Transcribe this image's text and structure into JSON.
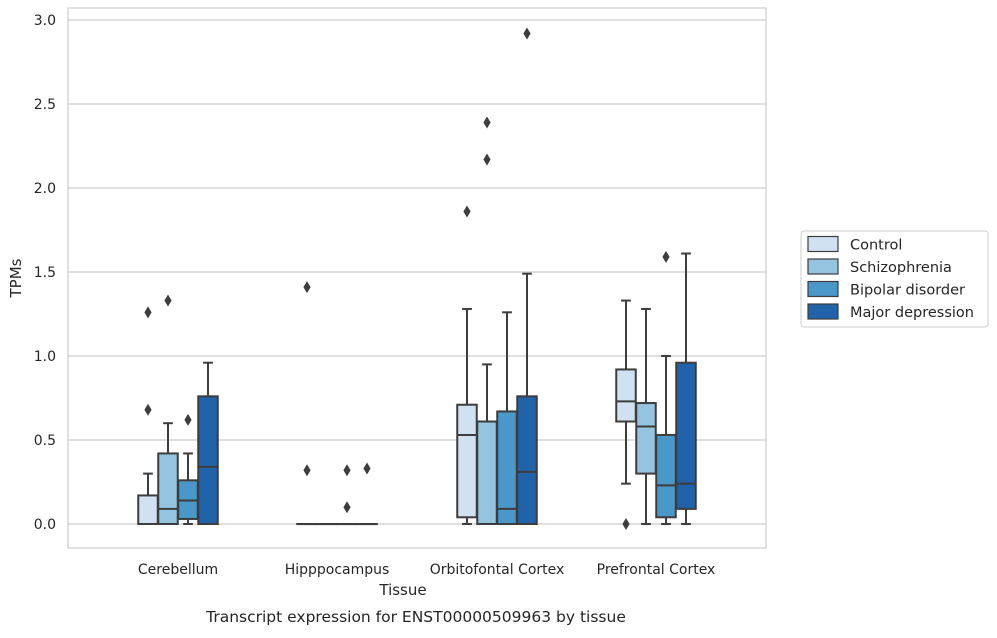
{
  "chart_data": {
    "type": "box",
    "xlabel": "Tissue",
    "ylabel": "TPMs",
    "caption": "Transcript expression for ENST00000509963 by tissue",
    "ylim": [
      -0.14,
      3.06
    ],
    "yticks": [
      "0.0",
      "0.5",
      "1.0",
      "1.5",
      "2.0",
      "2.5",
      "3.0"
    ],
    "grid": true,
    "legend_position": "right",
    "categories": [
      "Cerebellum",
      "Hipppocampus",
      "Orbitofontal Cortex",
      "Prefrontal Cortex"
    ],
    "colors": [
      "#d0e1f2",
      "#94c4df",
      "#4a98c9",
      "#2163aa"
    ],
    "series": [
      {
        "name": "Control",
        "boxes": [
          {
            "q1": 0.0,
            "median": 0.0,
            "q3": 0.17,
            "whislo": 0.0,
            "whishi": 0.3,
            "fliers": [
              0.68,
              1.26
            ]
          },
          {
            "q1": 0.0,
            "median": 0.0,
            "q3": 0.0,
            "whislo": 0.0,
            "whishi": 0.0,
            "fliers": [
              0.32,
              1.41
            ]
          },
          {
            "q1": 0.04,
            "median": 0.53,
            "q3": 0.71,
            "whislo": 0.0,
            "whishi": 1.28,
            "fliers": [
              1.86
            ]
          },
          {
            "q1": 0.61,
            "median": 0.73,
            "q3": 0.92,
            "whislo": 0.24,
            "whishi": 1.33,
            "fliers": [
              0.0
            ]
          }
        ]
      },
      {
        "name": "Schizophrenia",
        "boxes": [
          {
            "q1": 0.0,
            "median": 0.09,
            "q3": 0.42,
            "whislo": 0.0,
            "whishi": 0.6,
            "fliers": [
              1.33
            ]
          },
          {
            "q1": 0.0,
            "median": 0.0,
            "q3": 0.0,
            "whislo": 0.0,
            "whishi": 0.0,
            "fliers": []
          },
          {
            "q1": 0.0,
            "median": 0.0,
            "q3": 0.61,
            "whislo": 0.0,
            "whishi": 0.95,
            "fliers": [
              2.17,
              2.39
            ]
          },
          {
            "q1": 0.3,
            "median": 0.58,
            "q3": 0.72,
            "whislo": 0.0,
            "whishi": 1.28,
            "fliers": []
          }
        ]
      },
      {
        "name": "Bipolar disorder",
        "boxes": [
          {
            "q1": 0.03,
            "median": 0.14,
            "q3": 0.26,
            "whislo": 0.0,
            "whishi": 0.42,
            "fliers": [
              0.62
            ]
          },
          {
            "q1": 0.0,
            "median": 0.0,
            "q3": 0.0,
            "whislo": 0.0,
            "whishi": 0.0,
            "fliers": [
              0.1,
              0.32
            ]
          },
          {
            "q1": 0.0,
            "median": 0.09,
            "q3": 0.67,
            "whislo": 0.0,
            "whishi": 1.26,
            "fliers": []
          },
          {
            "q1": 0.04,
            "median": 0.23,
            "q3": 0.53,
            "whislo": 0.0,
            "whishi": 1.0,
            "fliers": [
              1.59
            ]
          }
        ]
      },
      {
        "name": "Major depression",
        "boxes": [
          {
            "q1": 0.0,
            "median": 0.34,
            "q3": 0.76,
            "whislo": 0.0,
            "whishi": 0.96,
            "fliers": []
          },
          {
            "q1": 0.0,
            "median": 0.0,
            "q3": 0.0,
            "whislo": 0.0,
            "whishi": 0.0,
            "fliers": [
              0.33
            ]
          },
          {
            "q1": 0.0,
            "median": 0.31,
            "q3": 0.76,
            "whislo": 0.0,
            "whishi": 1.49,
            "fliers": [
              2.92
            ]
          },
          {
            "q1": 0.09,
            "median": 0.24,
            "q3": 0.96,
            "whislo": 0.0,
            "whishi": 1.61,
            "fliers": []
          }
        ]
      }
    ]
  }
}
